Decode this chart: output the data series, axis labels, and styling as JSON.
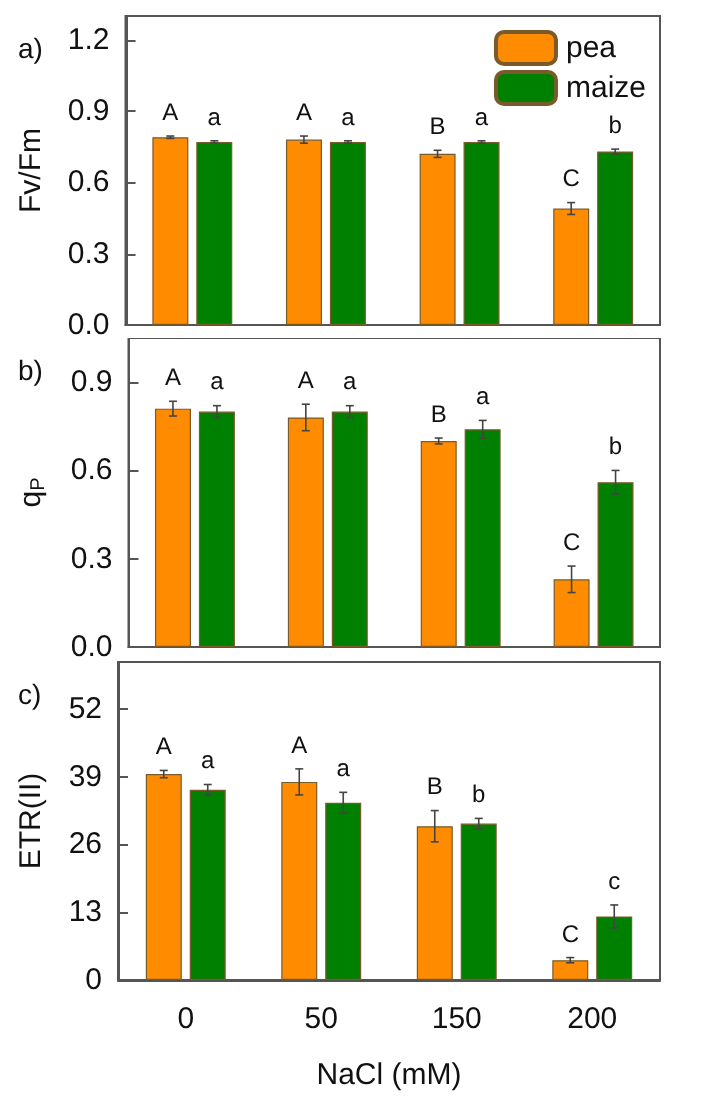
{
  "chart_data": [
    {
      "type": "bar",
      "title": "a)",
      "ylabel": "Fv/Fm",
      "categories": [
        "0",
        "50",
        "150",
        "200"
      ],
      "ylim": [
        0,
        1.3
      ],
      "yticks": [
        {
          "value": 0,
          "label": "0.0"
        },
        0.3,
        0.6,
        0.9,
        1.2
      ],
      "tick_labels": "y",
      "legend": "top right",
      "grid": false,
      "series": [
        {
          "name": "pea",
          "color": "#ff8c00",
          "values": [
            0.79,
            0.78,
            0.72,
            0.49
          ],
          "errors": [
            0.005,
            0.015,
            0.015,
            0.025
          ],
          "value_labels": [
            "A",
            "A",
            "B",
            "C"
          ]
        },
        {
          "name": "maize",
          "color": "#008000",
          "values": [
            0.77,
            0.77,
            0.77,
            0.73
          ],
          "errors": [
            0.005,
            0.005,
            0.005,
            0.01
          ],
          "value_labels": [
            "a",
            "a",
            "a",
            "b"
          ]
        }
      ]
    },
    {
      "type": "bar",
      "title": "b)",
      "ylabel": "q$_{P}$",
      "categories": [
        "0",
        "50",
        "150",
        "200"
      ],
      "ylim": [
        0,
        1.05
      ],
      "yticks": [
        {
          "value": 0,
          "label": "0.0"
        },
        0.3,
        0.6,
        0.9
      ],
      "tick_labels": "y",
      "grid": false,
      "series": [
        {
          "color": "#ff8c00",
          "values": [
            0.81,
            0.78,
            0.7,
            0.23
          ],
          "errors": [
            0.025,
            0.045,
            0.01,
            0.045
          ],
          "value_labels": [
            "A",
            "A",
            "B",
            "C"
          ]
        },
        {
          "color": "#008000",
          "values": [
            0.8,
            0.8,
            0.74,
            0.56
          ],
          "errors": [
            0.02,
            0.02,
            0.03,
            0.04
          ],
          "value_labels": [
            "a",
            "a",
            "a",
            "b"
          ]
        }
      ]
    },
    {
      "type": "bar",
      "title": "c)",
      "ylabel": "ETR(II)",
      "xlabel": "NaCl (mM)",
      "categories": [
        "0",
        "50",
        "150",
        "200"
      ],
      "ylim": [
        0,
        61
      ],
      "yticks": [
        0,
        13,
        26,
        39,
        52
      ],
      "grid": false,
      "series": [
        {
          "color": "#ff8c00",
          "values": [
            39.5,
            38,
            29.5,
            3.8
          ],
          "errors": [
            0.7,
            2.5,
            3,
            0.5
          ],
          "value_labels": [
            "A",
            "A",
            "B",
            "C"
          ]
        },
        {
          "color": "#008000",
          "values": [
            36.5,
            34,
            30,
            12.2
          ],
          "errors": [
            1,
            2,
            1,
            2.2
          ],
          "value_labels": [
            "a",
            "a",
            "b",
            "c"
          ]
        }
      ]
    }
  ]
}
